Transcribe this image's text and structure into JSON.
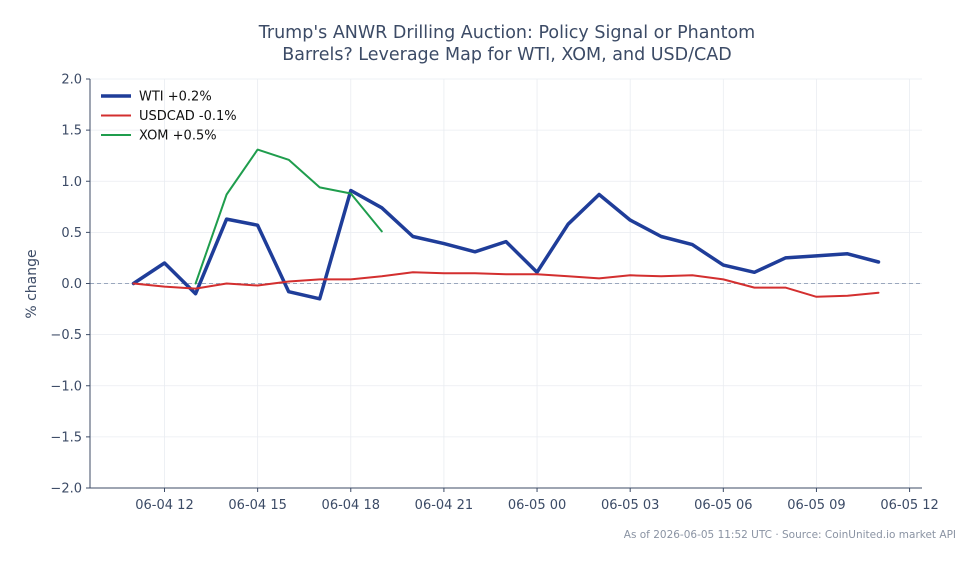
{
  "chart_data": {
    "type": "line",
    "title_lines": [
      "Trump's ANWR Drilling Auction: Policy Signal or Phantom",
      "Barrels? Leverage Map for WTI, XOM, and USD/CAD"
    ],
    "xlabel": "",
    "ylabel": "% change",
    "ylim": [
      -2.0,
      2.0
    ],
    "yticks": [
      -2.0,
      -1.5,
      -1.0,
      -0.5,
      0.0,
      0.5,
      1.0,
      1.5,
      2.0
    ],
    "ytick_labels": [
      "−2.0",
      "−1.5",
      "−1.0",
      "−0.5",
      "0.0",
      "0.5",
      "1.0",
      "1.5",
      "2.0"
    ],
    "xlim": [
      "2026-06-04 09:36",
      "2026-06-05 12:24"
    ],
    "xticks": [
      "2026-06-04 12:00",
      "2026-06-04 15:00",
      "2026-06-04 18:00",
      "2026-06-04 21:00",
      "2026-06-05 00:00",
      "2026-06-05 03:00",
      "2026-06-05 06:00",
      "2026-06-05 09:00",
      "2026-06-05 12:00"
    ],
    "xtick_labels": [
      "06-04 12",
      "06-04 15",
      "06-04 18",
      "06-04 21",
      "06-05 00",
      "06-05 03",
      "06-05 06",
      "06-05 09",
      "06-05 12"
    ],
    "grid": true,
    "zero_line": true,
    "legend_position": "top-left",
    "series": [
      {
        "name": "WTI +0.2%",
        "color": "#1f3d99",
        "x": [
          "2026-06-04 11:00",
          "2026-06-04 12:00",
          "2026-06-04 13:00",
          "2026-06-04 14:00",
          "2026-06-04 15:00",
          "2026-06-04 16:00",
          "2026-06-04 17:00",
          "2026-06-04 18:00",
          "2026-06-04 19:00",
          "2026-06-04 20:00",
          "2026-06-04 21:00",
          "2026-06-04 22:00",
          "2026-06-04 23:00",
          "2026-06-05 00:00",
          "2026-06-05 01:00",
          "2026-06-05 02:00",
          "2026-06-05 03:00",
          "2026-06-05 04:00",
          "2026-06-05 05:00",
          "2026-06-05 06:00",
          "2026-06-05 07:00",
          "2026-06-05 08:00",
          "2026-06-05 09:00",
          "2026-06-05 10:00",
          "2026-06-05 11:00"
        ],
        "values": [
          0.0,
          0.2,
          -0.1,
          0.63,
          0.57,
          -0.08,
          -0.15,
          0.91,
          0.74,
          0.46,
          0.39,
          0.31,
          0.41,
          0.11,
          0.58,
          0.87,
          0.62,
          0.46,
          0.38,
          0.18,
          0.11,
          0.25,
          0.27,
          0.29,
          0.21
        ]
      },
      {
        "name": "USDCAD -0.1%",
        "color": "#d32f2f",
        "x": [
          "2026-06-04 11:00",
          "2026-06-04 12:00",
          "2026-06-04 13:00",
          "2026-06-04 14:00",
          "2026-06-04 15:00",
          "2026-06-04 16:00",
          "2026-06-04 17:00",
          "2026-06-04 18:00",
          "2026-06-04 19:00",
          "2026-06-04 20:00",
          "2026-06-04 21:00",
          "2026-06-04 22:00",
          "2026-06-04 23:00",
          "2026-06-05 00:00",
          "2026-06-05 01:00",
          "2026-06-05 02:00",
          "2026-06-05 03:00",
          "2026-06-05 04:00",
          "2026-06-05 05:00",
          "2026-06-05 06:00",
          "2026-06-05 07:00",
          "2026-06-05 08:00",
          "2026-06-05 09:00",
          "2026-06-05 10:00",
          "2026-06-05 11:00"
        ],
        "values": [
          0.0,
          -0.03,
          -0.05,
          0.0,
          -0.02,
          0.02,
          0.04,
          0.04,
          0.07,
          0.11,
          0.1,
          0.1,
          0.09,
          0.09,
          0.07,
          0.05,
          0.08,
          0.07,
          0.08,
          0.04,
          -0.04,
          -0.04,
          -0.13,
          -0.12,
          -0.09
        ]
      },
      {
        "name": "XOM +0.5%",
        "color": "#1f9d4d",
        "x": [
          "2026-06-04 13:00",
          "2026-06-04 14:00",
          "2026-06-04 15:00",
          "2026-06-04 16:00",
          "2026-06-04 17:00",
          "2026-06-04 18:00",
          "2026-06-04 19:00"
        ],
        "values": [
          0.0,
          0.87,
          1.31,
          1.21,
          0.94,
          0.88,
          0.51
        ]
      }
    ]
  },
  "footer": "As of 2026-06-05 11:52 UTC · Source: CoinUnited.io market API"
}
